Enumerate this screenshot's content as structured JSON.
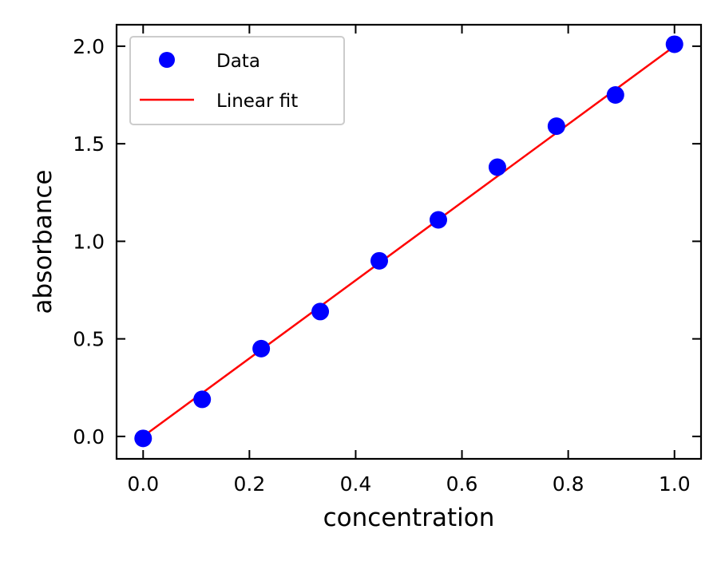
{
  "chart_data": {
    "type": "scatter",
    "xlabel": "concentration",
    "ylabel": "absorbance",
    "xlim": [
      -0.05,
      1.05
    ],
    "ylim": [
      -0.115,
      2.11
    ],
    "xticks": [
      0.0,
      0.2,
      0.4,
      0.6,
      0.8,
      1.0
    ],
    "xtick_labels": [
      "0.0",
      "0.2",
      "0.4",
      "0.6",
      "0.8",
      "1.0"
    ],
    "yticks": [
      0.0,
      0.5,
      1.0,
      1.5,
      2.0
    ],
    "ytick_labels": [
      "0.0",
      "0.5",
      "1.0",
      "1.5",
      "2.0"
    ],
    "grid": false,
    "legend_position": "upper-left",
    "series": [
      {
        "name": "Data",
        "kind": "scatter",
        "color": "#0000ff",
        "x": [
          0.0,
          0.1111,
          0.2222,
          0.3333,
          0.4444,
          0.5556,
          0.6667,
          0.7778,
          0.8889,
          1.0
        ],
        "y": [
          -0.01,
          0.19,
          0.45,
          0.64,
          0.9,
          1.11,
          1.38,
          1.59,
          1.75,
          2.01
        ]
      },
      {
        "name": "Linear fit",
        "kind": "line",
        "color": "#ff0000",
        "x": [
          0.0,
          1.0
        ],
        "y": [
          0.0,
          2.0
        ]
      }
    ]
  }
}
